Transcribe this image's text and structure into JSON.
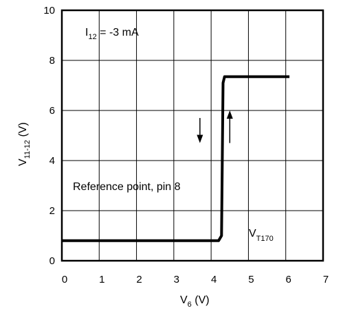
{
  "chart_data": {
    "type": "line",
    "x_ticks": [
      "0",
      "1",
      "2",
      "3",
      "4",
      "5",
      "6",
      "7"
    ],
    "y_ticks": [
      "0",
      "2",
      "4",
      "6",
      "8",
      "10"
    ],
    "xlim": [
      0,
      7
    ],
    "ylim": [
      0,
      10
    ],
    "grid": true,
    "xlabel": {
      "main": "V",
      "sub": "6",
      "unit": " (V)"
    },
    "ylabel": {
      "main": "V",
      "sub": "11-12",
      "unit": " (V)"
    },
    "series": [
      {
        "x": [
          0,
          4.2,
          4.28,
          4.32,
          4.36,
          6.1
        ],
        "y": [
          0.8,
          0.8,
          1.0,
          7.1,
          7.35,
          7.35
        ]
      }
    ],
    "annotations": {
      "current": {
        "main": "I",
        "sub": "12",
        "rest": " = -3 mA"
      },
      "reference": "Reference point, pin 8",
      "threshold": {
        "main": "V",
        "sub": "T170"
      }
    },
    "arrows": [
      {
        "direction": "down",
        "x": 3.7,
        "y_from": 5.7,
        "y_to": 4.7
      },
      {
        "direction": "up",
        "x": 4.5,
        "y_from": 4.7,
        "y_to": 6.0
      }
    ],
    "colors": {
      "line": "#000000",
      "grid": "#000000"
    }
  }
}
